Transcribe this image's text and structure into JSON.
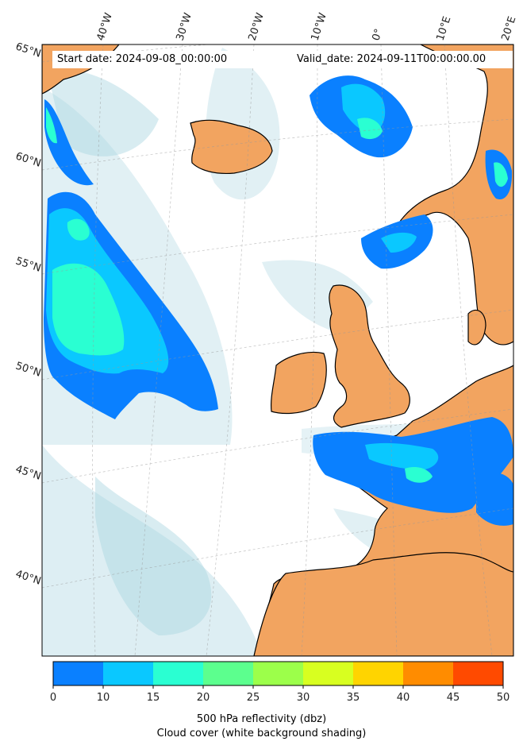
{
  "map": {
    "start_label": "Start date: 2024-09-08_00:00:00",
    "valid_label": "Valid_date: 2024-09-11T00:00:00.00",
    "lon_labels": [
      "40°W",
      "30°W",
      "20°W",
      "10°W",
      "0°",
      "10°E",
      "20°E"
    ],
    "lat_labels": [
      "65°N",
      "60°N",
      "55°N",
      "50°N",
      "45°N",
      "40°N"
    ]
  },
  "colorbar": {
    "ticks": [
      "0",
      "10",
      "15",
      "20",
      "25",
      "30",
      "35",
      "40",
      "45",
      "50"
    ],
    "colors": [
      "#0a80ff",
      "#0ac8ff",
      "#2affd2",
      "#5cff8e",
      "#9cff4a",
      "#d8ff20",
      "#ffd400",
      "#ff8c00",
      "#ff4a00"
    ],
    "label_line1": "500 hPa reflectivity (dbz)",
    "label_line2": "Cloud cover (white background shading)"
  },
  "colors": {
    "land": "#f2a460",
    "cloud": "#a9d4e0",
    "ocean": "#ffffff"
  }
}
